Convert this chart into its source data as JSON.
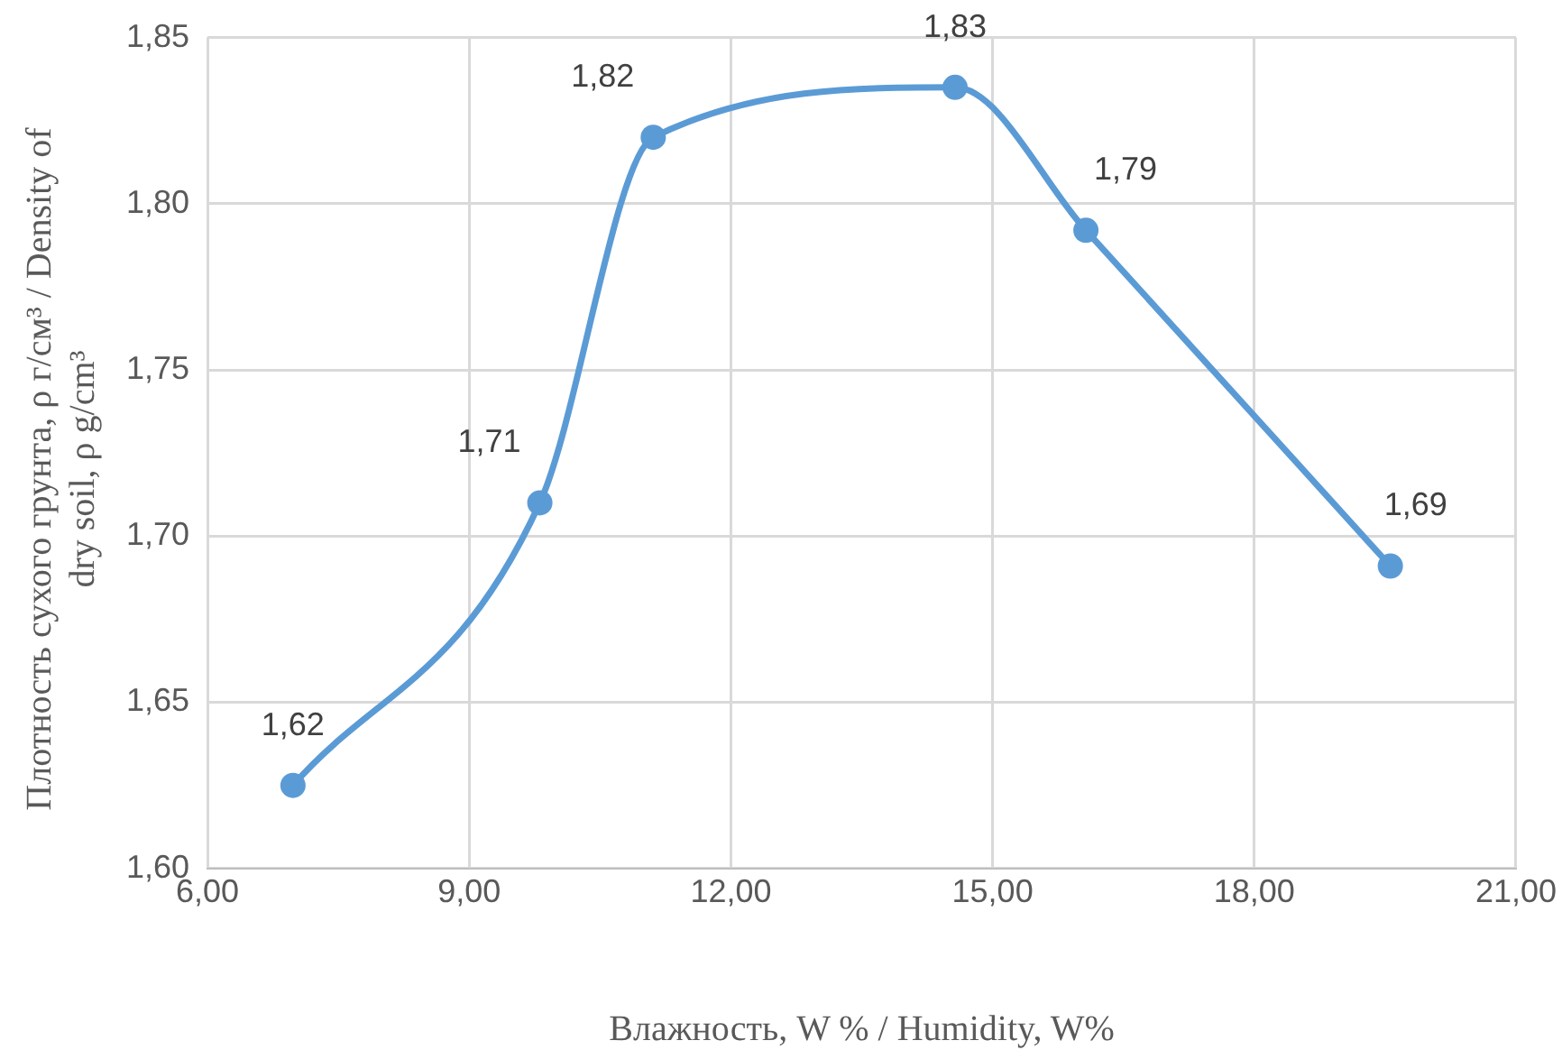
{
  "chart_data": {
    "type": "line",
    "xlabel": "Влажность, W % / Humidity, W%",
    "ylabel": "Плотность сухого грунта, ρ г/см³ / Density of dry soil, ρ g/cm³",
    "series": [
      {
        "color": "#5b9bd5",
        "x": [
          6.98,
          9.81,
          11.11,
          14.57,
          16.07,
          19.56
        ],
        "values": [
          1.625,
          1.71,
          1.82,
          1.835,
          1.792,
          1.691
        ],
        "value_labels": [
          "1,62",
          "1,71",
          "1,82",
          "1,83",
          "1,79",
          "1,69"
        ]
      }
    ],
    "xlim": [
      6,
      21
    ],
    "xticks": [
      {
        "value": 6,
        "label": "6,00"
      },
      {
        "value": 9,
        "label": "9,00"
      },
      {
        "value": 12,
        "label": "12,00"
      },
      {
        "value": 15,
        "label": "15,00"
      },
      {
        "value": 18,
        "label": "18,00"
      },
      {
        "value": 21,
        "label": "21,00"
      }
    ],
    "ylim": [
      1.6,
      1.85
    ],
    "yticks": [
      {
        "value": 1.6,
        "label": "1,60"
      },
      {
        "value": 1.65,
        "label": "1,65"
      },
      {
        "value": 1.7,
        "label": "1,70"
      },
      {
        "value": 1.75,
        "label": "1,75"
      },
      {
        "value": 1.8,
        "label": "1,80"
      },
      {
        "value": 1.85,
        "label": "1,85"
      }
    ],
    "grid": true,
    "legend": false,
    "marker": "circle",
    "line_style": "solid"
  }
}
